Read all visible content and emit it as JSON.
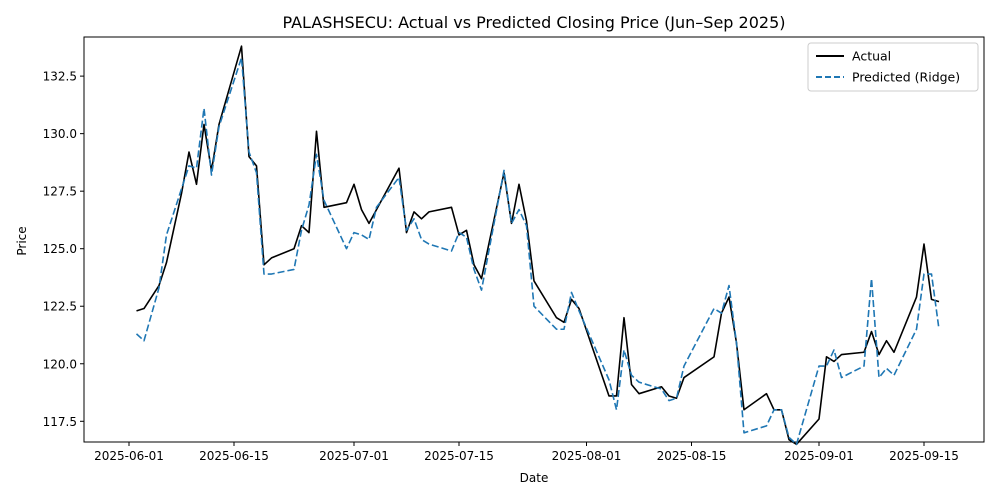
{
  "chart_data": {
    "type": "line",
    "title": "PALASHSECU: Actual vs Predicted Closing Price (Jun–Sep 2025)",
    "xlabel": "Date",
    "ylabel": "Price",
    "xlim": [
      "2025-05-26",
      "2025-09-23"
    ],
    "ylim": [
      116.6,
      134.2
    ],
    "x_ticks": [
      {
        "date": "2025-06-01",
        "label": "2025-06-01"
      },
      {
        "date": "2025-06-15",
        "label": "2025-06-15"
      },
      {
        "date": "2025-07-01",
        "label": "2025-07-01"
      },
      {
        "date": "2025-07-15",
        "label": "2025-07-15"
      },
      {
        "date": "2025-08-01",
        "label": "2025-08-01"
      },
      {
        "date": "2025-08-15",
        "label": "2025-08-15"
      },
      {
        "date": "2025-09-01",
        "label": "2025-09-01"
      },
      {
        "date": "2025-09-15",
        "label": "2025-09-15"
      }
    ],
    "y_ticks": [
      {
        "value": 117.5,
        "label": "117.5"
      },
      {
        "value": 120.0,
        "label": "120.0"
      },
      {
        "value": 122.5,
        "label": "122.5"
      },
      {
        "value": 125.0,
        "label": "125.0"
      },
      {
        "value": 127.5,
        "label": "127.5"
      },
      {
        "value": 130.0,
        "label": "130.0"
      },
      {
        "value": 132.5,
        "label": "132.5"
      }
    ],
    "grid": false,
    "legend": "top-right",
    "x": [
      "2025-06-02",
      "2025-06-03",
      "2025-06-05",
      "2025-06-06",
      "2025-06-08",
      "2025-06-09",
      "2025-06-10",
      "2025-06-11",
      "2025-06-12",
      "2025-06-13",
      "2025-06-16",
      "2025-06-17",
      "2025-06-18",
      "2025-06-19",
      "2025-06-20",
      "2025-06-23",
      "2025-06-24",
      "2025-06-25",
      "2025-06-26",
      "2025-06-27",
      "2025-06-30",
      "2025-07-01",
      "2025-07-02",
      "2025-07-03",
      "2025-07-04",
      "2025-07-07",
      "2025-07-08",
      "2025-07-09",
      "2025-07-10",
      "2025-07-11",
      "2025-07-14",
      "2025-07-15",
      "2025-07-16",
      "2025-07-17",
      "2025-07-18",
      "2025-07-21",
      "2025-07-22",
      "2025-07-23",
      "2025-07-24",
      "2025-07-25",
      "2025-07-28",
      "2025-07-29",
      "2025-07-30",
      "2025-07-31",
      "2025-08-04",
      "2025-08-05",
      "2025-08-06",
      "2025-08-07",
      "2025-08-08",
      "2025-08-11",
      "2025-08-12",
      "2025-08-13",
      "2025-08-14",
      "2025-08-18",
      "2025-08-19",
      "2025-08-20",
      "2025-08-21",
      "2025-08-22",
      "2025-08-25",
      "2025-08-26",
      "2025-08-27",
      "2025-08-28",
      "2025-08-29",
      "2025-09-01",
      "2025-09-02",
      "2025-09-03",
      "2025-09-04",
      "2025-09-07",
      "2025-09-08",
      "2025-09-09",
      "2025-09-10",
      "2025-09-11",
      "2025-09-14",
      "2025-09-15",
      "2025-09-16",
      "2025-09-17"
    ],
    "series": [
      {
        "name": "Actual",
        "color": "#000000",
        "dash": "solid",
        "values": [
          122.3,
          122.4,
          123.4,
          124.4,
          127.4,
          129.2,
          127.8,
          130.4,
          128.4,
          130.4,
          133.8,
          129.0,
          128.6,
          124.3,
          124.6,
          125.0,
          126.0,
          125.7,
          130.1,
          126.8,
          127.0,
          127.8,
          126.7,
          126.1,
          126.7,
          128.5,
          125.7,
          126.6,
          126.3,
          126.6,
          126.8,
          125.6,
          125.8,
          124.3,
          123.7,
          128.3,
          126.1,
          127.8,
          126.2,
          123.6,
          122.0,
          121.8,
          122.8,
          122.4,
          118.6,
          118.6,
          122.0,
          119.1,
          118.7,
          119.0,
          118.6,
          118.5,
          119.4,
          120.3,
          122.2,
          122.9,
          120.9,
          118.0,
          118.7,
          118.0,
          118.0,
          116.7,
          116.5,
          117.6,
          120.3,
          120.1,
          120.4,
          120.5,
          121.4,
          120.4,
          121.0,
          120.5,
          122.9,
          125.2,
          122.8,
          122.7
        ]
      },
      {
        "name": "Predicted (Ridge)",
        "color": "#1f77b4",
        "dash": "dashed",
        "values": [
          121.3,
          121.0,
          123.3,
          125.6,
          127.6,
          128.6,
          128.5,
          131.1,
          128.2,
          130.3,
          133.3,
          129.2,
          128.3,
          123.9,
          123.9,
          124.1,
          125.8,
          126.9,
          129.1,
          127.1,
          125.0,
          125.7,
          125.6,
          125.4,
          126.8,
          128.1,
          125.8,
          126.3,
          125.4,
          125.2,
          124.9,
          125.7,
          125.5,
          124.1,
          123.2,
          128.4,
          126.1,
          126.7,
          126.0,
          122.5,
          121.5,
          121.5,
          123.1,
          122.3,
          119.3,
          118.0,
          120.6,
          119.5,
          119.2,
          118.9,
          118.4,
          118.5,
          119.9,
          122.4,
          122.2,
          123.4,
          120.9,
          117.0,
          117.3,
          118.0,
          118.0,
          116.8,
          116.5,
          119.9,
          119.9,
          120.6,
          119.4,
          119.9,
          123.7,
          119.4,
          119.8,
          119.5,
          121.5,
          123.9,
          123.9,
          121.5
        ]
      }
    ]
  }
}
